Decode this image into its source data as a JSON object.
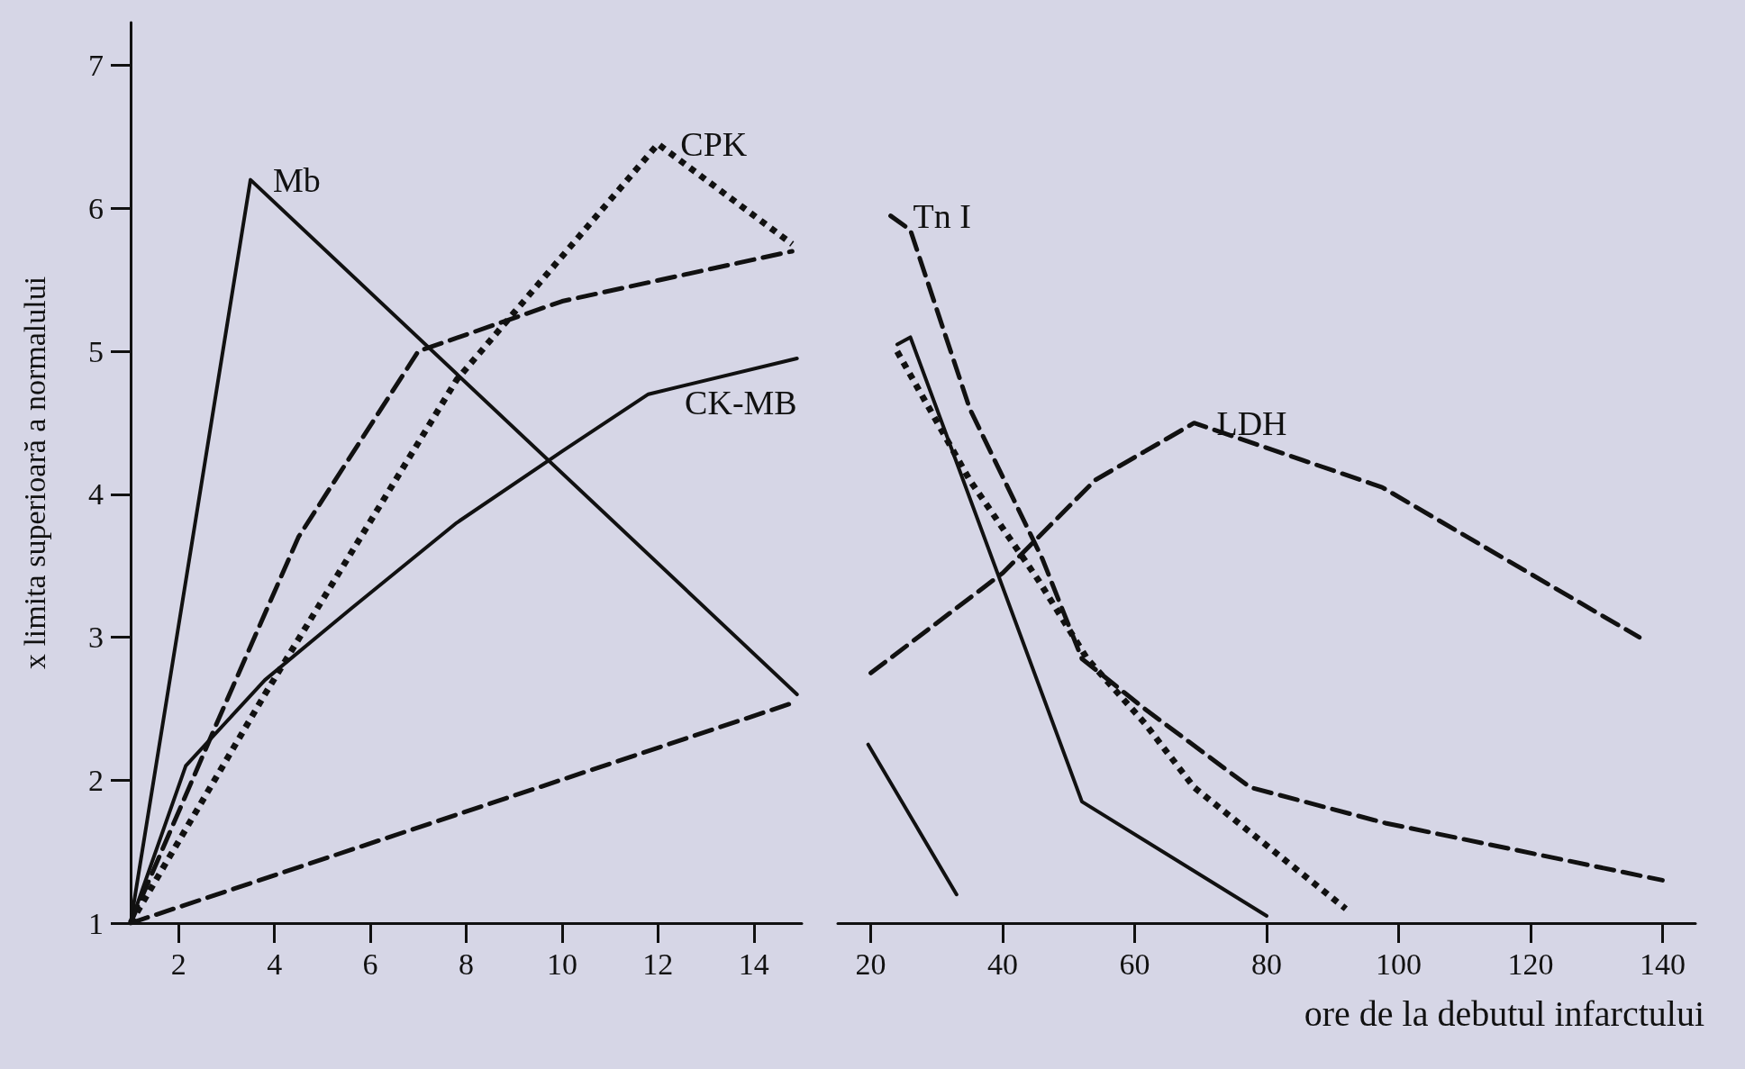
{
  "chart_data": [
    {
      "type": "line",
      "ylabel": "x limita superioară a normalului",
      "xlim": [
        1,
        15
      ],
      "xticks": [
        2,
        4,
        6,
        8,
        10,
        12,
        14
      ],
      "ylim": [
        1,
        7.3
      ],
      "yticks": [
        1,
        2,
        3,
        4,
        5,
        6,
        7
      ],
      "grid": false,
      "legend": false,
      "marker": "none",
      "series": [
        {
          "name": "Mb",
          "color": "#111111",
          "line_style": "solid",
          "x": [
            1,
            3.5,
            14.9
          ],
          "values": [
            1,
            6.2,
            2.6
          ]
        },
        {
          "name": "CPK",
          "color": "#111111",
          "line_style": "dotted",
          "x": [
            1,
            3.8,
            7.8,
            12,
            14.8
          ],
          "values": [
            1,
            2.6,
            4.8,
            6.45,
            5.75
          ]
        },
        {
          "color": "#111111",
          "line_style": "dashed",
          "x": [
            1,
            2.8,
            4.5,
            7,
            10,
            14.8
          ],
          "values": [
            1,
            2.4,
            3.7,
            5.0,
            5.35,
            5.7
          ]
        },
        {
          "name": "CK-MB",
          "color": "#111111",
          "line_style": "solid",
          "x": [
            1,
            2.15,
            3.8,
            5.6,
            7.8,
            10,
            11.8,
            14.9
          ],
          "values": [
            1,
            2.1,
            2.7,
            3.2,
            3.8,
            4.3,
            4.7,
            4.95
          ]
        },
        {
          "color": "#111111",
          "line_style": "dashed",
          "x": [
            1,
            14.9
          ],
          "values": [
            1,
            2.55
          ]
        }
      ]
    },
    {
      "type": "line",
      "xlabel": "ore de la debutul infarctului",
      "xlim": [
        15,
        145
      ],
      "xticks": [
        20,
        40,
        60,
        80,
        100,
        120,
        140
      ],
      "ylim": [
        1,
        7
      ],
      "yticks": [
        1,
        2,
        3,
        4,
        5,
        6,
        7
      ],
      "tick_labels": "x",
      "grid": false,
      "legend": false,
      "marker": "none",
      "series": [
        {
          "color": "#111111",
          "line_style": "solid",
          "x": [
            19.6,
            33
          ],
          "values": [
            2.25,
            1.2
          ]
        },
        {
          "color": "#111111",
          "line_style": "dotted",
          "x": [
            24,
            35,
            45.4,
            52.8,
            61.5,
            69,
            92
          ],
          "values": [
            5.0,
            4.1,
            3.4,
            2.85,
            2.4,
            1.95,
            1.1
          ]
        },
        {
          "name": "Tn I",
          "color": "#111111",
          "line_style": "dashed",
          "x": [
            23,
            26,
            35,
            46,
            52,
            61.5,
            77.5,
            98,
            140
          ],
          "values": [
            5.95,
            5.85,
            4.6,
            3.55,
            2.85,
            2.5,
            1.95,
            1.7,
            1.3
          ]
        },
        {
          "color": "#111111",
          "line_style": "solid",
          "x": [
            24,
            26,
            52,
            80
          ],
          "values": [
            5.05,
            5.1,
            1.85,
            1.05
          ]
        },
        {
          "name": "LDH",
          "color": "#111111",
          "line_style": "dashed",
          "x": [
            20,
            40,
            54,
            69,
            97.5,
            136.5
          ],
          "values": [
            2.75,
            3.45,
            4.1,
            4.5,
            4.05,
            3.0
          ]
        }
      ]
    }
  ]
}
